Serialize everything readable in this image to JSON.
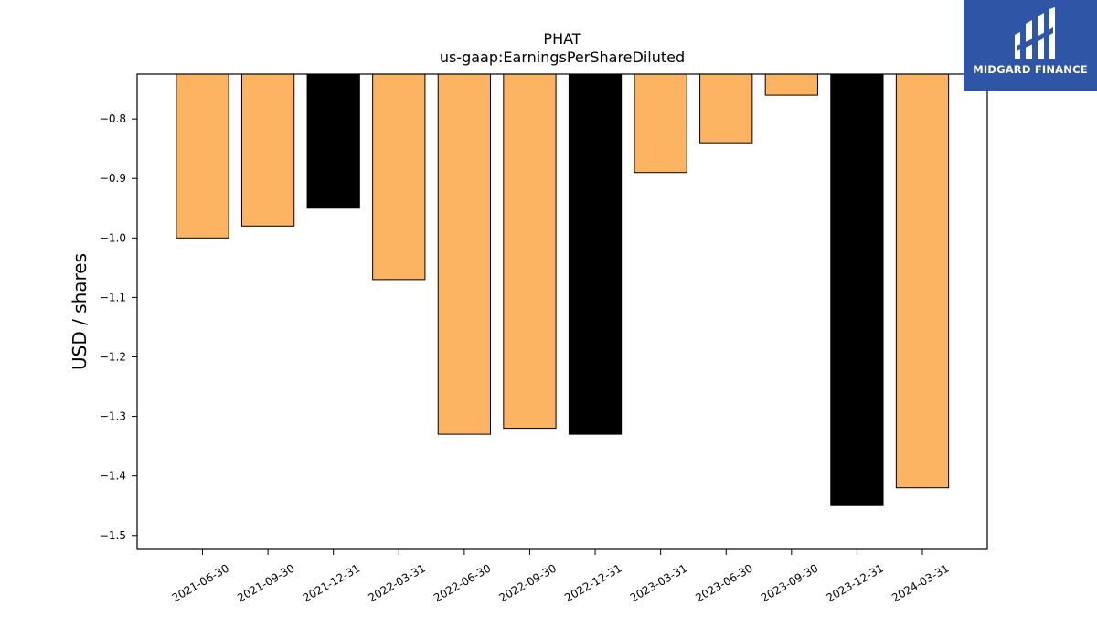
{
  "chart_data": {
    "type": "bar",
    "title": "PHAT",
    "subtitle": "us-gaap:EarningsPerShareDiluted",
    "xlabel": "",
    "ylabel": "USD / shares",
    "categories": [
      "2021-06-30",
      "2021-09-30",
      "2021-12-31",
      "2022-03-31",
      "2022-06-30",
      "2022-09-30",
      "2022-12-31",
      "2023-03-31",
      "2023-06-30",
      "2023-09-30",
      "2023-12-31",
      "2024-03-31"
    ],
    "values": [
      -1.0,
      -0.98,
      -0.95,
      -1.07,
      -1.33,
      -1.32,
      -1.33,
      -0.89,
      -0.84,
      -0.76,
      -1.45,
      -1.42
    ],
    "bar_colors": [
      "#fdb462",
      "#fdb462",
      "#000000",
      "#fdb462",
      "#fdb462",
      "#fdb462",
      "#000000",
      "#fdb462",
      "#fdb462",
      "#fdb462",
      "#000000",
      "#fdb462"
    ],
    "ylim": [
      -1.5234,
      -0.7245
    ],
    "yticks": [
      -0.8,
      -0.9,
      -1.0,
      -1.1,
      -1.2,
      -1.3,
      -1.4,
      -1.5
    ],
    "ytick_labels": [
      "−0.8",
      "−0.9",
      "−1.0",
      "−1.1",
      "−1.2",
      "−1.3",
      "−1.4",
      "−1.5"
    ],
    "grid": false,
    "legend": "none"
  },
  "logo": {
    "text": "MIDGARD FINANCE",
    "background": "#2f56a6",
    "mark_icon": "midgard-logo-icon"
  }
}
